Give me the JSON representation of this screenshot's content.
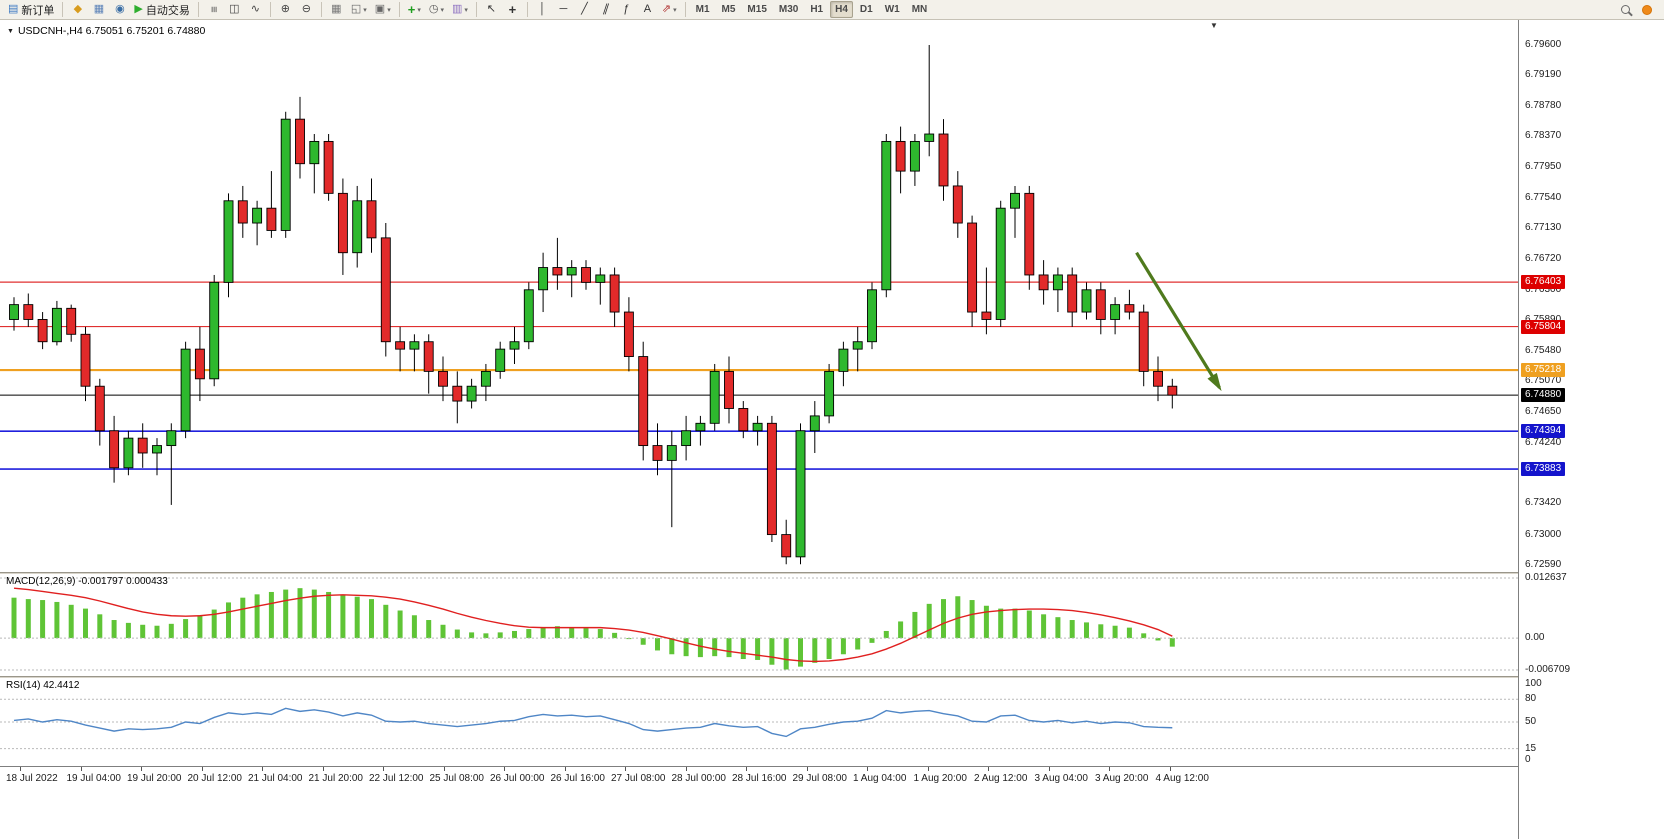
{
  "accent_colors": {
    "candle_up": "#2eb82e",
    "candle_down": "#e22a2a",
    "macd_histogram": "#5fc436",
    "macd_signal": "#e02020",
    "rsi_line": "#4f86c6",
    "arrow_green": "#4f7a1d",
    "toolbar_bg": "#f3f1ea"
  },
  "icons": {
    "header_triangle": "▼",
    "shift_marker": "▼",
    "dropdown_arrow": "▾"
  },
  "toolbar": {
    "items": [
      {
        "name": "new-order-button",
        "label": "新订单",
        "glyph": "▤",
        "glyph_color": "#3a78c2"
      },
      {
        "name": "divider"
      },
      {
        "name": "favorites-button",
        "glyph": "◆",
        "glyph_color": "#d89c1e"
      },
      {
        "name": "print-button",
        "glyph": "▦",
        "glyph_color": "#5b82b8"
      },
      {
        "name": "data-window-button",
        "glyph": "◉",
        "glyph_color": "#3a6ea5"
      },
      {
        "name": "autotrading-button",
        "label": "自动交易",
        "glyph": "▶",
        "glyph_color": "#2fae2f"
      },
      {
        "name": "divider"
      },
      {
        "name": "bar-chart-button",
        "glyph": "≡",
        "glyph_color": "#444",
        "rotate": 90
      },
      {
        "name": "candlestick-chart-button",
        "glyph": "◫",
        "glyph_color": "#444"
      },
      {
        "name": "line-chart-button",
        "glyph": "∿",
        "glyph_color": "#444"
      },
      {
        "name": "divider"
      },
      {
        "name": "zoom-in-button",
        "glyph": "⊕",
        "glyph_color": "#444"
      },
      {
        "name": "zoom-out-button",
        "glyph": "⊖",
        "glyph_color": "#444"
      },
      {
        "name": "divider"
      },
      {
        "name": "tile-windows-button",
        "glyph": "▦",
        "glyph_color": "#777"
      },
      {
        "name": "new-chart-button",
        "glyph": "◱",
        "glyph_color": "#666",
        "dropdown": true
      },
      {
        "name": "profiles-button",
        "glyph": "▣",
        "glyph_color": "#666",
        "dropdown": true
      },
      {
        "name": "divider"
      },
      {
        "name": "indicators-button",
        "glyph": "+",
        "glyph_color": "#1f9e1f",
        "bold": true,
        "dropdown": true
      },
      {
        "name": "periods-button",
        "glyph": "◷",
        "glyph_color": "#555",
        "dropdown": true
      },
      {
        "name": "templates-button",
        "glyph": "▥",
        "glyph_color": "#8c6fc0",
        "dropdown": true
      },
      {
        "name": "divider"
      },
      {
        "name": "cursor-button",
        "glyph": "↖",
        "glyph_color": "#333"
      },
      {
        "name": "crosshair-button",
        "glyph": "+",
        "glyph_color": "#333",
        "bold": true
      },
      {
        "name": "divider"
      },
      {
        "name": "vertical-line-button",
        "glyph": "│",
        "glyph_color": "#333"
      },
      {
        "name": "horizontal-line-button",
        "glyph": "─",
        "glyph_color": "#333"
      },
      {
        "name": "trendline-button",
        "glyph": "╱",
        "glyph_color": "#333"
      },
      {
        "name": "channel-button",
        "glyph": "∥",
        "glyph_color": "#333",
        "skew": true
      },
      {
        "name": "fibonacci-button",
        "glyph": "ƒ",
        "glyph_color": "#333"
      },
      {
        "name": "text-button",
        "glyph": "A",
        "glyph_color": "#333"
      },
      {
        "name": "arrows-button",
        "glyph": "⇗",
        "glyph_color": "#b03030",
        "dropdown": true
      },
      {
        "name": "divider"
      }
    ],
    "timeframes": {
      "list": [
        "M1",
        "M5",
        "M15",
        "M30",
        "H1",
        "H4",
        "D1",
        "W1",
        "MN"
      ],
      "active": "H4"
    }
  },
  "chart_header": {
    "title": "USDCNH-,H4  6.75051 6.75201 6.74880"
  },
  "price_axis": {
    "labels": [
      "6.79600",
      "6.79190",
      "6.78780",
      "6.78370",
      "6.77950",
      "6.77540",
      "6.77130",
      "6.76720",
      "6.76300",
      "6.75890",
      "6.75480",
      "6.75070",
      "6.74650",
      "6.74240",
      "6.73830",
      "6.73420",
      "6.73000",
      "6.72590"
    ],
    "badges": [
      {
        "value": "6.76403",
        "price": 6.76403,
        "color": "#dd0000"
      },
      {
        "value": "6.75804",
        "price": 6.75804,
        "color": "#dd0000"
      },
      {
        "value": "6.75218",
        "price": 6.75218,
        "color": "#efa020"
      },
      {
        "value": "6.74880",
        "price": 6.7488,
        "color": "#000000"
      },
      {
        "value": "6.74394",
        "price": 6.74394,
        "color": "#1414cc"
      },
      {
        "value": "6.73883",
        "price": 6.73883,
        "color": "#1414cc"
      }
    ]
  },
  "macd": {
    "label": "MACD(12,26,9) -0.001797 0.000433",
    "axis": [
      {
        "label": "0.012637",
        "value": 0.012637
      },
      {
        "label": "0.00",
        "value": 0
      },
      {
        "label": "-0.006709",
        "value": -0.006709
      }
    ]
  },
  "rsi": {
    "label": "RSI(14) 42.4412",
    "axis": [
      {
        "label": "100",
        "value": 100
      },
      {
        "label": "80",
        "value": 80
      },
      {
        "label": "50",
        "value": 50
      },
      {
        "label": "15",
        "value": 15
      },
      {
        "label": "0",
        "value": 0
      }
    ],
    "dashed_levels": [
      80,
      50,
      15
    ]
  },
  "time_axis": {
    "labels": [
      "18 Jul 2022",
      "19 Jul 04:00",
      "19 Jul 20:00",
      "20 Jul 12:00",
      "21 Jul 04:00",
      "21 Jul 20:00",
      "22 Jul 12:00",
      "25 Jul 08:00",
      "26 Jul 00:00",
      "26 Jul 16:00",
      "27 Jul 08:00",
      "28 Jul 00:00",
      "28 Jul 16:00",
      "29 Jul 08:00",
      "1 Aug 04:00",
      "1 Aug 20:00",
      "2 Aug 12:00",
      "3 Aug 04:00",
      "3 Aug 20:00",
      "4 Aug 12:00"
    ]
  },
  "chart_data": [
    {
      "type": "candlestick",
      "symbol": "USDCNH-",
      "period": "H4",
      "ylim": [
        6.7259,
        6.796
      ],
      "colors": {
        "up": "#2eb82e",
        "down": "#e22a2a",
        "wick": "#000000"
      },
      "hlines": [
        {
          "name": "resistance-line-1",
          "price": 6.76403,
          "color": "#e03030",
          "width": 1.2
        },
        {
          "name": "resistance-line-2",
          "price": 6.75804,
          "color": "#e03030",
          "width": 1.2
        },
        {
          "name": "pivot-line-orange",
          "price": 6.75218,
          "color": "#efa020",
          "width": 2.2
        },
        {
          "name": "current-price-line",
          "price": 6.7488,
          "color": "#000000",
          "width": 1
        },
        {
          "name": "support-line-1",
          "price": 6.74394,
          "color": "#2020dd",
          "width": 1.6
        },
        {
          "name": "support-line-2",
          "price": 6.73883,
          "color": "#2020dd",
          "width": 1.6
        }
      ],
      "arrow": {
        "from_index": 78.5,
        "from_price": 6.768,
        "to_index": 84.3,
        "to_price": 6.7498,
        "color": "#4f7a1d"
      },
      "candles": [
        [
          6.759,
          6.762,
          6.7575,
          6.761
        ],
        [
          6.761,
          6.7625,
          6.758,
          6.759
        ],
        [
          6.759,
          6.76,
          6.755,
          6.756
        ],
        [
          6.756,
          6.7615,
          6.7555,
          6.7605
        ],
        [
          6.7605,
          6.761,
          6.756,
          6.757
        ],
        [
          6.757,
          6.758,
          6.748,
          6.75
        ],
        [
          6.75,
          6.751,
          6.742,
          6.744
        ],
        [
          6.744,
          6.746,
          6.737,
          6.739
        ],
        [
          6.739,
          6.744,
          6.738,
          6.743
        ],
        [
          6.743,
          6.745,
          6.739,
          6.741
        ],
        [
          6.741,
          6.743,
          6.738,
          6.742
        ],
        [
          6.742,
          6.745,
          6.734,
          6.744
        ],
        [
          6.744,
          6.756,
          6.743,
          6.755
        ],
        [
          6.755,
          6.758,
          6.748,
          6.751
        ],
        [
          6.751,
          6.765,
          6.75,
          6.764
        ],
        [
          6.764,
          6.776,
          6.762,
          6.775
        ],
        [
          6.775,
          6.777,
          6.77,
          6.772
        ],
        [
          6.772,
          6.775,
          6.769,
          6.774
        ],
        [
          6.774,
          6.779,
          6.77,
          6.771
        ],
        [
          6.771,
          6.787,
          6.77,
          6.786
        ],
        [
          6.786,
          6.789,
          6.778,
          6.78
        ],
        [
          6.78,
          6.784,
          6.776,
          6.783
        ],
        [
          6.783,
          6.784,
          6.775,
          6.776
        ],
        [
          6.776,
          6.778,
          6.765,
          6.768
        ],
        [
          6.768,
          6.777,
          6.766,
          6.775
        ],
        [
          6.775,
          6.778,
          6.768,
          6.77
        ],
        [
          6.77,
          6.772,
          6.754,
          6.756
        ],
        [
          6.756,
          6.758,
          6.752,
          6.755
        ],
        [
          6.755,
          6.757,
          6.752,
          6.756
        ],
        [
          6.756,
          6.757,
          6.749,
          6.752
        ],
        [
          6.752,
          6.754,
          6.748,
          6.75
        ],
        [
          6.75,
          6.752,
          6.745,
          6.748
        ],
        [
          6.748,
          6.751,
          6.747,
          6.75
        ],
        [
          6.75,
          6.753,
          6.748,
          6.752
        ],
        [
          6.752,
          6.756,
          6.751,
          6.755
        ],
        [
          6.755,
          6.758,
          6.753,
          6.756
        ],
        [
          6.756,
          6.764,
          6.755,
          6.763
        ],
        [
          6.763,
          6.768,
          6.76,
          6.766
        ],
        [
          6.766,
          6.77,
          6.763,
          6.765
        ],
        [
          6.765,
          6.767,
          6.762,
          6.766
        ],
        [
          6.766,
          6.767,
          6.763,
          6.764
        ],
        [
          6.764,
          6.766,
          6.761,
          6.765
        ],
        [
          6.765,
          6.766,
          6.758,
          6.76
        ],
        [
          6.76,
          6.762,
          6.752,
          6.754
        ],
        [
          6.754,
          6.756,
          6.74,
          6.742
        ],
        [
          6.742,
          6.745,
          6.738,
          6.74
        ],
        [
          6.74,
          6.744,
          6.731,
          6.742
        ],
        [
          6.742,
          6.746,
          6.74,
          6.744
        ],
        [
          6.744,
          6.746,
          6.742,
          6.745
        ],
        [
          6.745,
          6.753,
          6.744,
          6.752
        ],
        [
          6.752,
          6.754,
          6.745,
          6.747
        ],
        [
          6.747,
          6.748,
          6.743,
          6.744
        ],
        [
          6.744,
          6.746,
          6.742,
          6.745
        ],
        [
          6.745,
          6.746,
          6.729,
          6.73
        ],
        [
          6.73,
          6.732,
          6.726,
          6.727
        ],
        [
          6.727,
          6.745,
          6.726,
          6.744
        ],
        [
          6.744,
          6.748,
          6.741,
          6.746
        ],
        [
          6.746,
          6.753,
          6.745,
          6.752
        ],
        [
          6.752,
          6.756,
          6.75,
          6.755
        ],
        [
          6.755,
          6.758,
          6.752,
          6.756
        ],
        [
          6.756,
          6.764,
          6.755,
          6.763
        ],
        [
          6.763,
          6.784,
          6.762,
          6.783
        ],
        [
          6.783,
          6.785,
          6.776,
          6.779
        ],
        [
          6.779,
          6.784,
          6.777,
          6.783
        ],
        [
          6.783,
          6.796,
          6.781,
          6.784
        ],
        [
          6.784,
          6.786,
          6.775,
          6.777
        ],
        [
          6.777,
          6.779,
          6.77,
          6.772
        ],
        [
          6.772,
          6.773,
          6.758,
          6.76
        ],
        [
          6.76,
          6.766,
          6.757,
          6.759
        ],
        [
          6.759,
          6.775,
          6.758,
          6.774
        ],
        [
          6.774,
          6.777,
          6.77,
          6.776
        ],
        [
          6.776,
          6.777,
          6.763,
          6.765
        ],
        [
          6.765,
          6.767,
          6.761,
          6.763
        ],
        [
          6.763,
          6.766,
          6.76,
          6.765
        ],
        [
          6.765,
          6.766,
          6.758,
          6.76
        ],
        [
          6.76,
          6.764,
          6.759,
          6.763
        ],
        [
          6.763,
          6.764,
          6.757,
          6.759
        ],
        [
          6.759,
          6.762,
          6.757,
          6.761
        ],
        [
          6.761,
          6.763,
          6.759,
          6.76
        ],
        [
          6.76,
          6.761,
          6.75,
          6.752
        ],
        [
          6.752,
          6.754,
          6.748,
          6.75
        ],
        [
          6.75,
          6.751,
          6.747,
          6.7488
        ]
      ]
    },
    {
      "type": "macd",
      "title": "MACD(12,26,9)",
      "ylim": [
        -0.006709,
        0.012637
      ],
      "colors": {
        "histogram": "#5fc436",
        "signal": "#e02020"
      },
      "histogram": [
        0.0085,
        0.0082,
        0.008,
        0.0076,
        0.007,
        0.0062,
        0.005,
        0.0038,
        0.0032,
        0.0028,
        0.0026,
        0.003,
        0.004,
        0.0048,
        0.006,
        0.0075,
        0.0085,
        0.0092,
        0.0097,
        0.0102,
        0.0105,
        0.0102,
        0.0097,
        0.009,
        0.0087,
        0.0082,
        0.007,
        0.0058,
        0.0048,
        0.0038,
        0.0028,
        0.0018,
        0.0012,
        0.001,
        0.0012,
        0.0015,
        0.0019,
        0.0023,
        0.0025,
        0.0023,
        0.0021,
        0.0019,
        0.0011,
        0.0,
        -0.0014,
        -0.0026,
        -0.0034,
        -0.0038,
        -0.004,
        -0.0038,
        -0.004,
        -0.0044,
        -0.0046,
        -0.0056,
        -0.0066,
        -0.006,
        -0.0052,
        -0.0044,
        -0.0034,
        -0.0024,
        -0.001,
        0.0015,
        0.0035,
        0.0055,
        0.0072,
        0.0082,
        0.0088,
        0.008,
        0.0068,
        0.0062,
        0.0062,
        0.0058,
        0.005,
        0.0044,
        0.0038,
        0.0033,
        0.0029,
        0.0026,
        0.0022,
        0.001,
        -0.0005,
        -0.0018
      ],
      "signal": [
        0.0105,
        0.0102,
        0.0098,
        0.0094,
        0.009,
        0.0085,
        0.0078,
        0.007,
        0.0062,
        0.0055,
        0.005,
        0.0047,
        0.0046,
        0.0047,
        0.005,
        0.0055,
        0.0061,
        0.0067,
        0.0073,
        0.0079,
        0.0084,
        0.0088,
        0.009,
        0.0091,
        0.009,
        0.0089,
        0.0086,
        0.0082,
        0.0076,
        0.0069,
        0.0061,
        0.0052,
        0.0044,
        0.0037,
        0.0031,
        0.0026,
        0.0023,
        0.0022,
        0.0022,
        0.0022,
        0.0022,
        0.0022,
        0.002,
        0.0017,
        0.0012,
        0.0005,
        -0.0002,
        -0.001,
        -0.0017,
        -0.0023,
        -0.0028,
        -0.0032,
        -0.0036,
        -0.004,
        -0.0045,
        -0.0048,
        -0.0049,
        -0.0048,
        -0.0045,
        -0.004,
        -0.0033,
        -0.0023,
        -0.0011,
        0.0003,
        0.0017,
        0.0031,
        0.0042,
        0.005,
        0.0055,
        0.0058,
        0.006,
        0.0061,
        0.0061,
        0.006,
        0.0058,
        0.0054,
        0.0049,
        0.0043,
        0.0036,
        0.0028,
        0.0018,
        0.0004
      ],
      "current_values": {
        "macd": -0.001797,
        "signal": 0.000433
      }
    },
    {
      "type": "line",
      "title": "RSI(14)",
      "ylim": [
        0,
        100
      ],
      "color": "#4f86c6",
      "current_value": 42.4412,
      "values": [
        52,
        54,
        50,
        53,
        51,
        46,
        42,
        38,
        41,
        40,
        41,
        43,
        50,
        48,
        56,
        62,
        60,
        62,
        60,
        68,
        64,
        66,
        63,
        58,
        62,
        59,
        51,
        50,
        51,
        48,
        46,
        44,
        46,
        48,
        51,
        52,
        57,
        60,
        58,
        59,
        57,
        58,
        53,
        48,
        40,
        38,
        40,
        42,
        43,
        48,
        45,
        43,
        44,
        35,
        31,
        41,
        43,
        47,
        50,
        51,
        55,
        65,
        62,
        64,
        65,
        61,
        58,
        51,
        50,
        58,
        59,
        52,
        50,
        52,
        49,
        51,
        48,
        50,
        49,
        44,
        43,
        42.44
      ]
    }
  ]
}
